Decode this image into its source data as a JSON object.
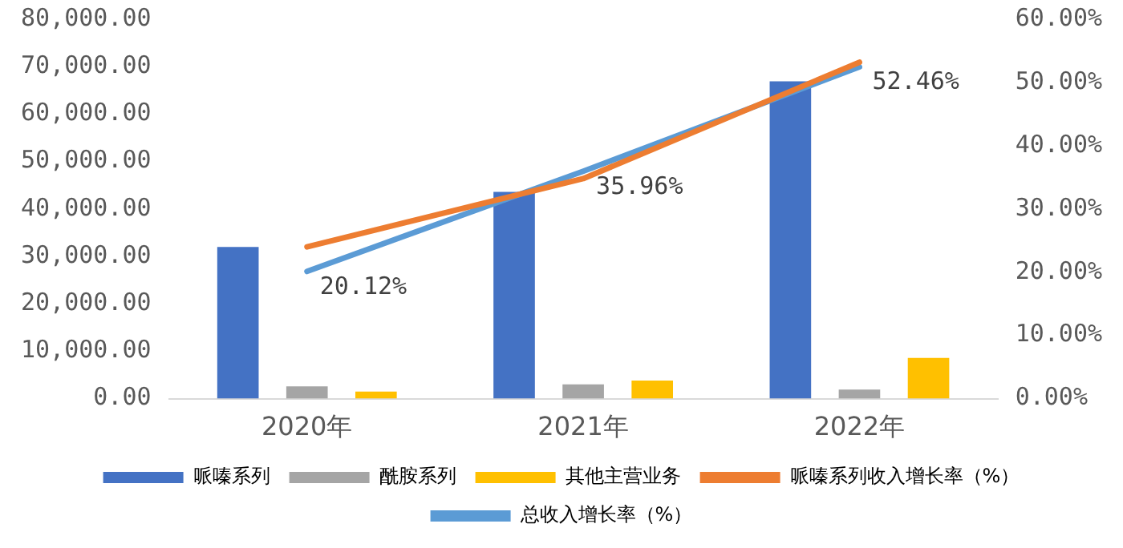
{
  "chart_data": {
    "type": "bar",
    "categories": [
      "2020年",
      "2021年",
      "2022年"
    ],
    "series": [
      {
        "name": "哌嗪系列",
        "color": "#4472c4",
        "values": [
          32000,
          43600,
          66900
        ]
      },
      {
        "name": "酰胺系列",
        "color": "#a5a5a5",
        "values": [
          2600,
          3000,
          1900
        ]
      },
      {
        "name": "其他主营业务",
        "color": "#ffc000",
        "values": [
          1500,
          3800,
          8600
        ]
      },
      {
        "name": "哌嗪系列收入增长率（%）",
        "type": "line",
        "axis": "y2",
        "color": "#ed7d31",
        "values": [
          24.0,
          34.8,
          53.2
        ]
      },
      {
        "name": "总收入增长率（%）",
        "type": "line",
        "axis": "y2",
        "color": "#5b9bd5",
        "values": [
          20.12,
          35.96,
          52.46
        ],
        "value_labels": [
          "20.12%",
          "35.96%",
          "52.46%"
        ]
      }
    ],
    "ylim": [
      0,
      80000
    ],
    "yticks": [
      {
        "value": 0,
        "label": "0.00"
      },
      {
        "value": 10000,
        "label": "10,000.00"
      },
      {
        "value": 20000,
        "label": "20,000.00"
      },
      {
        "value": 30000,
        "label": "30,000.00"
      },
      {
        "value": 40000,
        "label": "40,000.00"
      },
      {
        "value": 50000,
        "label": "50,000.00"
      },
      {
        "value": 60000,
        "label": "60,000.00"
      },
      {
        "value": 70000,
        "label": "70,000.00"
      },
      {
        "value": 80000,
        "label": "80,000.00"
      }
    ],
    "y2lim": [
      0,
      60
    ],
    "y2ticks": [
      {
        "value": 0,
        "label": "0.00%"
      },
      {
        "value": 10,
        "label": "10.00%"
      },
      {
        "value": 20,
        "label": "20.00%"
      },
      {
        "value": 30,
        "label": "30.00%"
      },
      {
        "value": 40,
        "label": "40.00%"
      },
      {
        "value": 50,
        "label": "50.00%"
      },
      {
        "value": 60,
        "label": "60.00%"
      }
    ],
    "grid": false,
    "legend": "bottom",
    "marker": "none"
  }
}
